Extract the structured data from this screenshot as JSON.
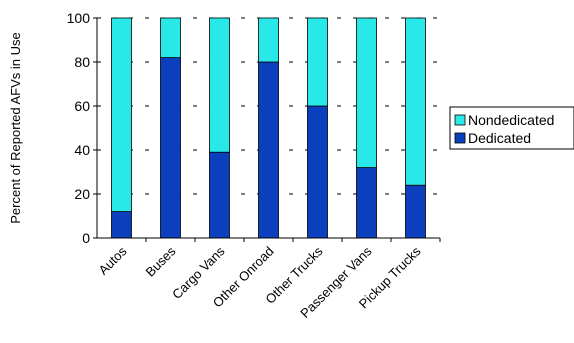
{
  "chart_data": {
    "type": "bar",
    "stacked": true,
    "categories": [
      "Autos",
      "Buses",
      "Cargo Vans",
      "Other Onroad",
      "Other Trucks",
      "Passenger Vans",
      "Pickup Trucks"
    ],
    "series": [
      {
        "name": "Dedicated",
        "color": "#0b3fbd",
        "values": [
          12,
          82,
          39,
          80,
          60,
          32,
          24
        ]
      },
      {
        "name": "Nondedicated",
        "color": "#28e8e8",
        "values": [
          88,
          18,
          61,
          20,
          40,
          68,
          76
        ]
      }
    ],
    "ylabel": "Percent of Reported AFVs in Use",
    "ylim": [
      0,
      100
    ],
    "yticks": [
      0,
      20,
      40,
      60,
      80,
      100
    ],
    "grid": true,
    "grid_style": "dashed-horizontal",
    "legend": {
      "placement": "right",
      "entries": [
        "Nondedicated",
        "Dedicated"
      ]
    }
  }
}
